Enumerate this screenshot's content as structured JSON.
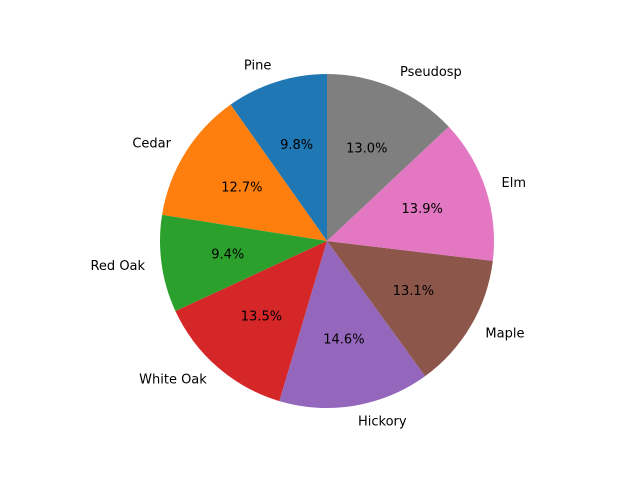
{
  "chart_data": {
    "type": "pie",
    "title": "",
    "categories": [
      "Pine",
      "Cedar",
      "Red Oak",
      "White Oak",
      "Hickory",
      "Maple",
      "Elm",
      "Pseudosp"
    ],
    "values": [
      9.8,
      12.7,
      9.4,
      13.5,
      14.6,
      13.1,
      13.9,
      13.0
    ],
    "value_labels": [
      "9.8%",
      "12.7%",
      "9.4%",
      "13.5%",
      "14.6%",
      "13.1%",
      "13.9%",
      "13.0%"
    ],
    "colors": [
      "#1f77b4",
      "#ff7f0e",
      "#2ca02c",
      "#d62728",
      "#9467bd",
      "#8c564b",
      "#e377c2",
      "#7f7f7f"
    ],
    "start_angle_deg": 90,
    "direction": "counterclockwise",
    "legend": "none",
    "grid": false
  }
}
